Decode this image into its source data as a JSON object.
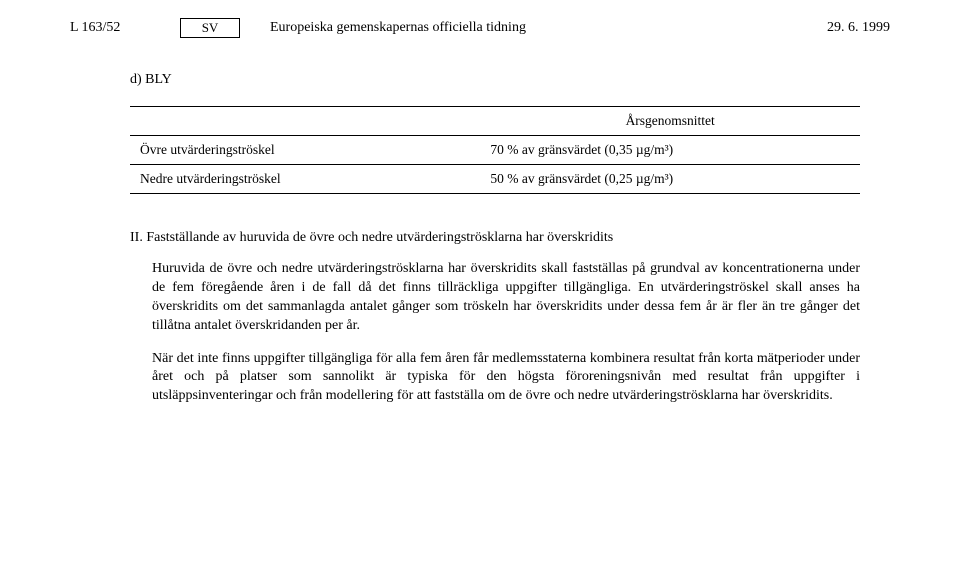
{
  "header": {
    "left": "L 163/52",
    "lang": "SV",
    "title": "Europeiska gemenskapernas officiella tidning",
    "date": "29. 6. 1999"
  },
  "section_d": {
    "label": "d) BLY",
    "table": {
      "col_header": "Årsgenomsnittet",
      "rows": [
        {
          "label": "Övre utvärderingströskel",
          "value": "70 % av gränsvärdet (0,35 µg/m³)"
        },
        {
          "label": "Nedre utvärderingströskel",
          "value": "50 % av gränsvärdet (0,25 µg/m³)"
        }
      ]
    }
  },
  "section_II": {
    "title": "II. Fastställande av huruvida de övre och nedre utvärderingströsklarna har överskridits",
    "para1": "Huruvida de övre och nedre utvärderingströsklarna har överskridits skall fastställas på grundval av koncentrationerna under de fem föregående åren i de fall då det finns tillräckliga uppgifter tillgängliga. En utvärderingströskel skall anses ha överskridits om det sammanlagda antalet gånger som tröskeln har överskridits under dessa fem år är fler än tre gånger det tillåtna antalet överskridanden per år.",
    "para2": "När det inte finns uppgifter tillgängliga för alla fem åren får medlemsstaterna kombinera resultat från korta mätperioder under året och på platser som sannolikt är typiska för den högsta föroreningsnivån med resultat från uppgifter i utsläppsinventeringar och från modellering för att fastställa om de övre och nedre utvärderingströsklarna har överskridits."
  }
}
